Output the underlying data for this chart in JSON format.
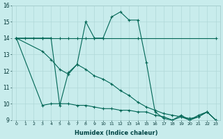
{
  "xlabel": "Humidex (Indice chaleur)",
  "background_color": "#c8ecec",
  "grid_color": "#b0d8d8",
  "line_color": "#006655",
  "xlim": [
    -0.5,
    23.5
  ],
  "ylim": [
    9,
    16
  ],
  "xtick_labels": [
    "0",
    "1",
    "2",
    "3",
    "4",
    "5",
    "6",
    "7",
    "8",
    "9",
    "10",
    "11",
    "12",
    "13",
    "14",
    "15",
    "16",
    "17",
    "18",
    "19",
    "20",
    "21",
    "22",
    "23"
  ],
  "ytick_labels": [
    "9",
    "10",
    "11",
    "12",
    "13",
    "14",
    "15",
    "16"
  ],
  "series": [
    {
      "x": [
        0,
        1,
        2,
        3,
        4,
        5,
        6,
        7,
        8,
        9,
        10,
        14,
        23
      ],
      "y": [
        14,
        14,
        14,
        14,
        14,
        14,
        14,
        14,
        14,
        14,
        14,
        14,
        14
      ]
    },
    {
      "x": [
        0,
        3,
        4,
        5,
        6,
        7,
        8,
        9,
        10,
        11,
        12,
        13,
        14,
        15,
        16,
        17,
        18,
        19,
        20,
        21,
        22,
        23
      ],
      "y": [
        14,
        14,
        14,
        9.9,
        11.9,
        12.4,
        15.0,
        14,
        14,
        15.3,
        15.6,
        15.1,
        15.1,
        12.5,
        9.5,
        9.1,
        9.0,
        9.3,
        9.0,
        9.3,
        9.5,
        9.0
      ]
    },
    {
      "x": [
        0,
        3,
        4,
        5,
        6,
        7,
        8,
        9,
        10,
        11,
        12,
        13,
        14,
        15,
        16,
        17,
        18,
        19,
        20,
        21,
        22,
        23
      ],
      "y": [
        14,
        13.2,
        12.7,
        12.1,
        11.8,
        12.4,
        12.1,
        11.7,
        11.5,
        11.2,
        10.8,
        10.5,
        10.1,
        9.8,
        9.6,
        9.4,
        9.3,
        9.2,
        9.1,
        9.2,
        9.5,
        9.0
      ]
    },
    {
      "x": [
        0,
        3,
        4,
        5,
        6,
        7,
        8,
        9,
        10,
        11,
        12,
        13,
        14,
        15,
        16,
        17,
        18,
        19,
        20,
        21,
        22,
        23
      ],
      "y": [
        14,
        9.9,
        10.0,
        10.0,
        10.0,
        9.9,
        9.9,
        9.8,
        9.7,
        9.7,
        9.6,
        9.6,
        9.5,
        9.5,
        9.3,
        9.2,
        9.0,
        9.2,
        9.0,
        9.2,
        9.5,
        9.0
      ]
    }
  ]
}
